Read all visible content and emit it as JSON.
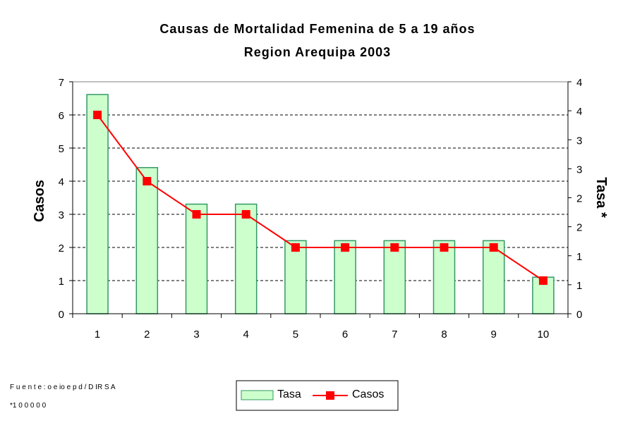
{
  "chart_data": {
    "type": "bar+line",
    "title": "Causas de Mortalidad  Femenina de 5 a 19 años",
    "subtitle": "Region Arequipa 2003",
    "categories": [
      "1",
      "2",
      "3",
      "4",
      "5",
      "6",
      "7",
      "8",
      "9",
      "10"
    ],
    "series": [
      {
        "name": "Tasa",
        "type": "bar",
        "axis": "right",
        "color": "#ccffcc",
        "edge": "#339966",
        "values": [
          3.78,
          2.52,
          1.89,
          1.89,
          1.26,
          1.26,
          1.26,
          1.26,
          1.26,
          0.63
        ]
      },
      {
        "name": "Casos",
        "type": "line",
        "axis": "left",
        "color": "#ff0000",
        "values": [
          6,
          4,
          3,
          3,
          2,
          2,
          2,
          2,
          2,
          1
        ]
      }
    ],
    "ylabel": "Casos",
    "y2label": "Tasa *",
    "ylim": [
      0,
      7
    ],
    "y2lim": [
      0,
      4
    ],
    "yticks": [
      "0",
      "1",
      "2",
      "3",
      "4",
      "5",
      "6",
      "7"
    ],
    "y2ticks": [
      "0",
      "1",
      "1",
      "2",
      "2",
      "3",
      "3",
      "4",
      "4"
    ],
    "grid": true,
    "legend": "bottom-center"
  },
  "footer": {
    "source": "F u e n t e : o e io e p d / D IR S A",
    "note": "*1 0 0 0 0 0"
  }
}
